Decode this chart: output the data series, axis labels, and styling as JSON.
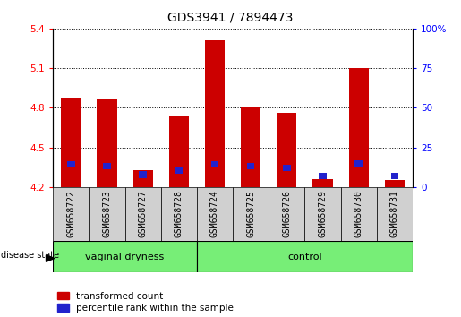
{
  "title": "GDS3941 / 7894473",
  "samples": [
    "GSM658722",
    "GSM658723",
    "GSM658727",
    "GSM658728",
    "GSM658724",
    "GSM658725",
    "GSM658726",
    "GSM658729",
    "GSM658730",
    "GSM658731"
  ],
  "red_values": [
    4.88,
    4.865,
    4.33,
    4.74,
    5.31,
    4.8,
    4.76,
    4.26,
    5.1,
    4.25
  ],
  "blue_values": [
    4.37,
    4.36,
    4.295,
    4.325,
    4.37,
    4.36,
    4.345,
    4.285,
    4.38,
    4.285
  ],
  "ymin": 4.2,
  "ymax": 5.4,
  "y_ticks_left": [
    4.2,
    4.5,
    4.8,
    5.1,
    5.4
  ],
  "y_ticks_right": [
    0,
    25,
    50,
    75,
    100
  ],
  "group_labels": [
    "vaginal dryness",
    "control"
  ],
  "n_group1": 4,
  "n_group2": 6,
  "bar_color_red": "#CC0000",
  "bar_color_blue": "#2222CC",
  "bar_width": 0.55,
  "bg_color": "#FFFFFF",
  "green_color": "#77EE77",
  "gray_color": "#D0D0D0",
  "title_fontsize": 10,
  "label_fontsize": 7,
  "group_fontsize": 8,
  "legend_fontsize": 7.5
}
